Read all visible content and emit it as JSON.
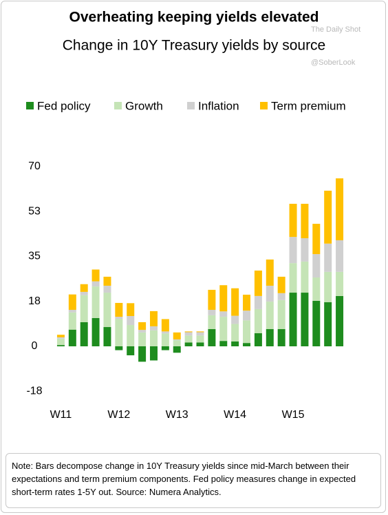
{
  "chart_data": {
    "type": "stacked_bar",
    "title": "Overheating keeping yields elevated",
    "subtitle": "Change in 10Y Treasury yields by source",
    "watermarks": [
      "The Daily Shot",
      "@SoberLook"
    ],
    "note": "Note: Bars decompose change in 10Y Treasury yields since mid-March between their expectations and term premium components. Fed policy measures change in expected short-term rates 1-5Y out. Source: Numera Analytics.",
    "categories": [
      "W11",
      null,
      null,
      null,
      null,
      "W12",
      null,
      null,
      null,
      null,
      "W13",
      null,
      null,
      null,
      null,
      "W14",
      null,
      null,
      null,
      null,
      "W15",
      null,
      null,
      null,
      null
    ],
    "series": [
      {
        "name": "Fed policy",
        "color": "#1e8c1e",
        "values": [
          0.5,
          6.5,
          9.4,
          11,
          7.5,
          -1.5,
          -3.5,
          -6,
          -5.5,
          -1.5,
          -2.5,
          1.5,
          1.5,
          6.7,
          2.1,
          1.9,
          1.3,
          5.1,
          6.7,
          6.7,
          20.9,
          20.9,
          17.7,
          17.2,
          19.6
        ]
      },
      {
        "name": "Growth",
        "color": "#c5e4b6",
        "values": [
          2.5,
          6.7,
          10.5,
          12.3,
          13.4,
          10.7,
          8.3,
          5.4,
          6.2,
          5,
          2.4,
          2.7,
          2.7,
          5.4,
          9.4,
          6.8,
          8.8,
          9.4,
          10.7,
          11.3,
          11.5,
          12.1,
          9.1,
          11.8,
          9.4
        ]
      },
      {
        "name": "Inflation",
        "color": "#d0d0d0",
        "values": [
          0.5,
          1,
          1.3,
          2,
          2.7,
          0.8,
          3.5,
          1,
          1.6,
          0.8,
          0.3,
          1.3,
          1.3,
          2.1,
          2.1,
          3.2,
          3.8,
          5.1,
          6.2,
          2.7,
          10.2,
          9.1,
          9.1,
          11,
          12.3
        ]
      },
      {
        "name": "Term premium",
        "color": "#ffc000",
        "values": [
          1,
          6,
          3,
          4.6,
          3.5,
          5.4,
          5,
          3,
          5.9,
          4.8,
          2.7,
          0.3,
          0.3,
          7.8,
          10.2,
          10.7,
          6.2,
          9.9,
          10.2,
          6.4,
          12.9,
          13.4,
          11.8,
          20.6,
          24.1
        ]
      }
    ],
    "ylim": [
      -20,
      72
    ],
    "yticks": [
      {
        "value": -17.5,
        "label": "-18"
      },
      0,
      {
        "value": 17.5,
        "label": "18"
      },
      35,
      {
        "value": 52.5,
        "label": "53"
      },
      70
    ],
    "legend": "top",
    "grid": false
  }
}
